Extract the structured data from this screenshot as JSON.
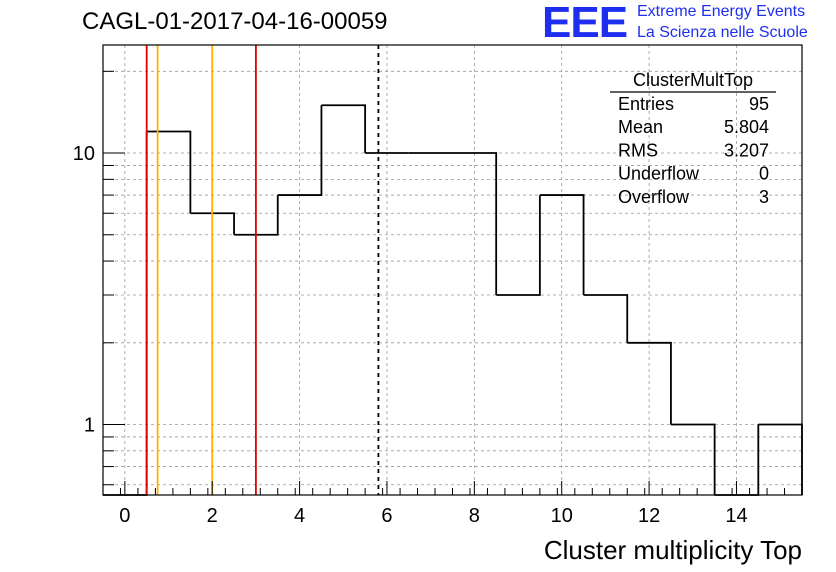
{
  "title": "CAGL-01-2017-04-16-00059",
  "logo": {
    "mark": "EEE",
    "line1": "Extreme Energy Events",
    "line2": "La Scienza nelle Scuole"
  },
  "stats": {
    "name": "ClusterMultTop",
    "rows": [
      {
        "label": "Entries",
        "value": "95"
      },
      {
        "label": "Mean",
        "value": "5.804"
      },
      {
        "label": "RMS",
        "value": "3.207"
      },
      {
        "label": "Underflow",
        "value": "0"
      },
      {
        "label": "Overflow",
        "value": "3"
      }
    ]
  },
  "chart_data": {
    "type": "histogram",
    "xlabel": "Cluster multiplicity Top",
    "ylabel": "",
    "xlim": [
      -0.5,
      15.5
    ],
    "ylim": [
      0.55,
      25
    ],
    "yscale": "log",
    "grid": true,
    "x_ticks": [
      0,
      2,
      4,
      6,
      8,
      10,
      12,
      14
    ],
    "y_ticks": [
      {
        "value": 1,
        "label": "1"
      },
      {
        "value": 10,
        "label": "10"
      }
    ],
    "bins": [
      {
        "x": 0,
        "value": 0
      },
      {
        "x": 1,
        "value": 12
      },
      {
        "x": 2,
        "value": 6
      },
      {
        "x": 3,
        "value": 5
      },
      {
        "x": 4,
        "value": 7
      },
      {
        "x": 5,
        "value": 15
      },
      {
        "x": 6,
        "value": 10
      },
      {
        "x": 7,
        "value": 10
      },
      {
        "x": 8,
        "value": 10
      },
      {
        "x": 9,
        "value": 3
      },
      {
        "x": 10,
        "value": 7
      },
      {
        "x": 11,
        "value": 3
      },
      {
        "x": 12,
        "value": 2
      },
      {
        "x": 13,
        "value": 1
      },
      {
        "x": 14,
        "value": 0
      },
      {
        "x": 15,
        "value": 1
      }
    ],
    "vertical_lines": [
      {
        "x": 0.5,
        "color": "#e00000",
        "style": "solid"
      },
      {
        "x": 0.75,
        "color": "#ffb000",
        "style": "solid"
      },
      {
        "x": 2.0,
        "color": "#ffb000",
        "style": "solid"
      },
      {
        "x": 3.0,
        "color": "#e00000",
        "style": "solid"
      },
      {
        "x": 5.804,
        "color": "#000000",
        "style": "dashed"
      }
    ]
  }
}
